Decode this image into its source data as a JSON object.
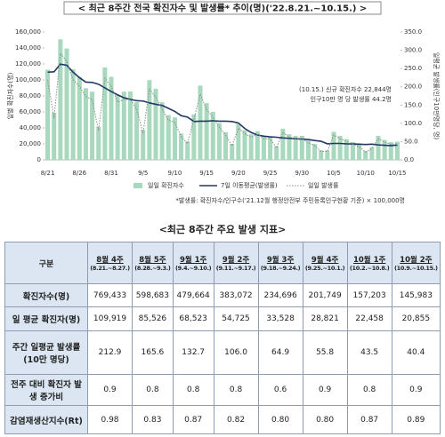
{
  "chart_data": {
    "type": "combo",
    "title": "< 최근 8주간 전국 확진자수 및 발생률* 추이(명)('22.8.21.~10.15.) >",
    "y_label": "일별 확진자수(명)",
    "y2_label": "일평균 발생률(인구10만명당, 명)",
    "annotation": [
      "(10.15.) 신규 확진자수 22,844명",
      "인구10만 명 당 발생률 44.2명"
    ],
    "note": "*발생률: 확진자수/인구수('21.12월 행정안전부 주민등록인구현황 기준) × 100,000명",
    "categories": [
      "8/21",
      null,
      null,
      null,
      null,
      "8/26",
      null,
      null,
      null,
      null,
      "8/31",
      null,
      null,
      null,
      null,
      "9/5",
      null,
      null,
      null,
      null,
      "9/10",
      null,
      null,
      null,
      null,
      "9/15",
      null,
      null,
      null,
      null,
      "9/20",
      null,
      null,
      null,
      null,
      "9/25",
      null,
      null,
      null,
      null,
      "9/30",
      null,
      null,
      null,
      null,
      "10/5",
      null,
      null,
      null,
      null,
      "10/10",
      null,
      null,
      null,
      null,
      "10/15"
    ],
    "series": [
      {
        "name": "일일 확진자수",
        "kind": "bar",
        "color": "#a8d8bd",
        "values": [
          112901,
          59046,
          150802,
          139339,
          113370,
          103961,
          89586,
          85295,
          41411,
          115642,
          103913,
          81573,
          85320,
          85529,
          72144,
          37597,
          99837,
          89000,
          72000,
          56000,
          53086,
          33000,
          23000,
          57000,
          93000,
          71000,
          60000,
          46072,
          34700,
          20000,
          45000,
          37000,
          32000,
          36000,
          29996,
          29500,
          17000,
          39000,
          32000,
          30000,
          30000,
          24249,
          20000,
          12000,
          12000,
          35000,
          30000,
          26000,
          22203,
          19000,
          11000,
          16000,
          30000,
          25000,
          22139,
          22844
        ]
      },
      {
        "name": "7일 이동평균(발생률)",
        "kind": "line",
        "axis": "y2",
        "color": "#1f3864",
        "values": [
          240,
          241,
          262,
          259,
          240,
          225,
          212.9,
          212,
          207,
          197,
          187,
          178,
          170,
          165.6,
          162,
          161,
          156,
          152,
          149,
          141,
          132.7,
          121,
          117,
          105,
          106,
          106,
          107,
          106.0,
          106,
          105,
          101,
          86,
          75,
          68,
          64.9,
          63,
          62,
          60,
          59,
          58,
          57,
          55.8,
          53,
          51,
          44,
          45,
          45,
          44,
          43.5,
          43,
          42,
          43,
          41,
          40,
          39,
          40.4
        ]
      },
      {
        "name": "일일 발생률",
        "kind": "dotted",
        "axis": "y2",
        "color": "#8c8c8c",
        "values": [
          218.4,
          114.2,
          291.7,
          269.6,
          219.3,
          201.1,
          173.3,
          165.0,
          80.1,
          223.7,
          201.0,
          157.8,
          165.1,
          165.5,
          139.6,
          72.7,
          193.1,
          172.2,
          139.3,
          108.3,
          102.7,
          63.8,
          44.5,
          110.3,
          179.9,
          137.4,
          116.1,
          89.1,
          67.1,
          38.7,
          87.1,
          71.6,
          61.9,
          69.6,
          58.0,
          57.1,
          32.9,
          75.4,
          61.9,
          58.0,
          58.0,
          46.9,
          38.7,
          23.2,
          23.2,
          67.7,
          58.0,
          50.3,
          43.0,
          36.8,
          21.3,
          31.0,
          58.0,
          48.4,
          42.8,
          44.2
        ]
      }
    ],
    "ylim": [
      0,
      160000
    ],
    "yticks": [
      0,
      {
        "value": 20000,
        "label": "20,000"
      },
      {
        "value": 40000,
        "label": "40,000"
      },
      {
        "value": 60000,
        "label": "60,000"
      },
      {
        "value": 80000,
        "label": "80,000"
      },
      {
        "value": 100000,
        "label": "100,000"
      },
      {
        "value": 120000,
        "label": "120,000"
      },
      {
        "value": 140000,
        "label": "140,000"
      },
      {
        "value": 160000,
        "label": "160,000"
      }
    ],
    "y2lim": [
      0,
      350
    ],
    "y2ticks": [
      {
        "value": 0,
        "label": "0.0"
      },
      {
        "value": 50,
        "label": "50.0"
      },
      {
        "value": 100,
        "label": "100.0"
      },
      {
        "value": 150,
        "label": "150.0"
      },
      {
        "value": 200,
        "label": "200.0"
      },
      {
        "value": 250,
        "label": "250.0"
      },
      {
        "value": 300,
        "label": "300.0"
      },
      {
        "value": 350,
        "label": "350.0"
      }
    ]
  },
  "table_section": {
    "title": "<최근 8주간 주요 발생 지표>",
    "header": {
      "label": "구분",
      "weeks": [
        {
          "name": "8월 4주",
          "range": "(8.21.~8.27.)"
        },
        {
          "name": "8월 5주",
          "range": "(8.28.~9.3.)"
        },
        {
          "name": "9월 1주",
          "range": "(9.4.~9.10.)"
        },
        {
          "name": "9월 2주",
          "range": "(9.11.~9.17.)"
        },
        {
          "name": "9월 3주",
          "range": "(9.18.~9.24.)"
        },
        {
          "name": "9월 4주",
          "range": "(9.25.~10.1.)"
        },
        {
          "name": "10월 1주",
          "range": "(10.2.~10.8.)"
        },
        {
          "name": "10월 2주",
          "range": "(10.9.~10.15.)"
        }
      ]
    },
    "rows": [
      {
        "label": "확진자수(명)",
        "cells": [
          "769,433",
          "598,683",
          "479,664",
          "383,072",
          "234,696",
          "201,749",
          "157,203",
          "145,983"
        ]
      },
      {
        "label": "일 평균 확진자(명)",
        "cells": [
          "109,919",
          "85,526",
          "68,523",
          "54,725",
          "33,528",
          "28,821",
          "22,458",
          "20,855"
        ]
      },
      {
        "label": "주간 일평균 발생률(10만 명당)",
        "cells": [
          "212.9",
          "165.6",
          "132.7",
          "106.0",
          "64.9",
          "55.8",
          "43.5",
          "40.4"
        ]
      },
      {
        "label": "전주 대비 확진자 발생 증가비",
        "cells": [
          "0.9",
          "0.8",
          "0.8",
          "0.8",
          "0.6",
          "0.9",
          "0.8",
          "0.9"
        ]
      },
      {
        "label": "감염재생산지수(Rt)",
        "cells": [
          "0.98",
          "0.83",
          "0.87",
          "0.82",
          "0.80",
          "0.80",
          "0.87",
          "0.89"
        ]
      }
    ]
  }
}
